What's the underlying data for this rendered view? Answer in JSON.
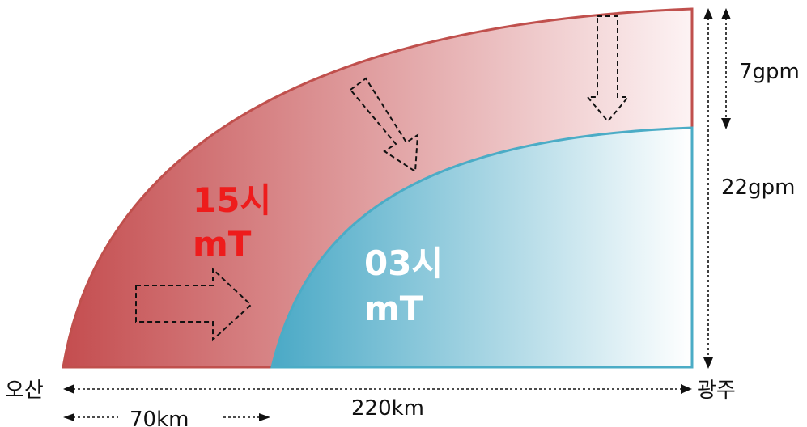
{
  "layers": {
    "upper": {
      "time": "15시",
      "mass": "mT",
      "fill_start": "#c44d4f",
      "fill_end": "#fdf3f4",
      "stroke": "#c0504d"
    },
    "lower": {
      "time": "03시",
      "mass": "mT",
      "fill_start": "#4aa9c6",
      "fill_end": "#ffffff",
      "stroke": "#4bacc6"
    }
  },
  "heights": {
    "upper_gap": "7gpm",
    "lower_layer": "22gpm"
  },
  "locations": {
    "left": "오산",
    "right": "광주"
  },
  "distances": {
    "total": "220km",
    "partial": "70km"
  },
  "icons": {
    "flow_arrows": "dashed-arrow-icon",
    "dimension_arrows": "double-arrow-icon"
  }
}
